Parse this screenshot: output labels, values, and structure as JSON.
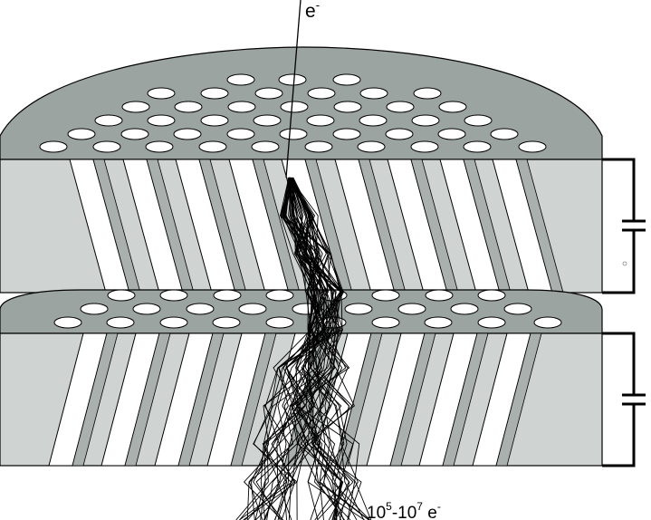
{
  "labels": {
    "incident": {
      "main": "e",
      "sup": "-"
    },
    "output": {
      "p1": "10",
      "s1": "5",
      "p2": "-10",
      "s2": "7",
      "p3": " e",
      "s3": "-"
    }
  },
  "colors": {
    "cap": "#9ca4a1",
    "slab": "#cfd4d2",
    "channel": "#ffffff",
    "shadow": "#a9b0ad",
    "stroke": "#000000"
  }
}
